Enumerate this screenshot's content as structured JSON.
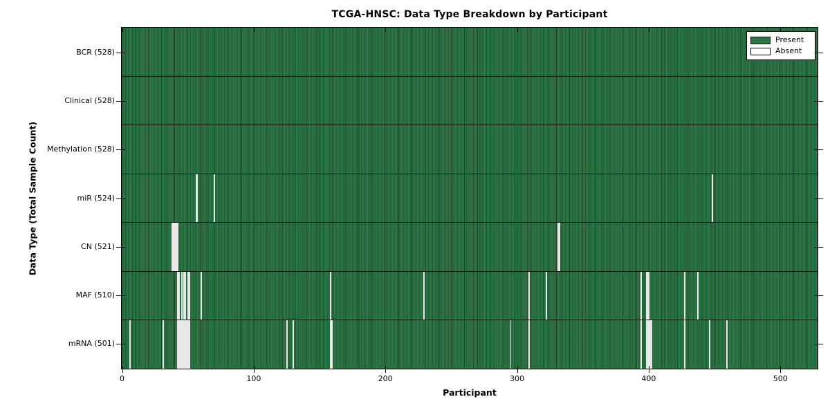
{
  "chart_data": {
    "type": "heatmap",
    "title": "TCGA-HNSC: Data Type Breakdown by Participant",
    "xlabel": "Participant",
    "ylabel": "Data Type (Total Sample Count)",
    "xlim": [
      0,
      528
    ],
    "x_ticks": [
      0,
      100,
      200,
      300,
      400,
      500
    ],
    "total_participants": 528,
    "grid": false,
    "legend_position": "upper right",
    "legend": [
      {
        "label": "Present",
        "color": "#2e7848"
      },
      {
        "label": "Absent",
        "color": "#ffffff"
      }
    ],
    "colors": {
      "present_fill": "#2e7848",
      "absent_fill": "#e9e9e9",
      "border": "#000000",
      "background": "#ffffff"
    },
    "rows": [
      {
        "label": "BCR (528)",
        "data_type": "BCR",
        "count": 528,
        "absent_ranges": []
      },
      {
        "label": "Clinical (528)",
        "data_type": "Clinical",
        "count": 528,
        "absent_ranges": []
      },
      {
        "label": "Methylation (528)",
        "data_type": "Methylation",
        "count": 528,
        "absent_ranges": []
      },
      {
        "label": "miR (524)",
        "data_type": "miR",
        "count": 524,
        "absent_ranges": [
          [
            56,
            2
          ],
          [
            70,
            1
          ],
          [
            448,
            1
          ]
        ]
      },
      {
        "label": "CN (521)",
        "data_type": "CN",
        "count": 521,
        "absent_ranges": [
          [
            38,
            5
          ],
          [
            331,
            2
          ]
        ]
      },
      {
        "label": "MAF (510)",
        "data_type": "MAF",
        "count": 510,
        "absent_ranges": [
          [
            42,
            2
          ],
          [
            45,
            1
          ],
          [
            47,
            2
          ],
          [
            50,
            2
          ],
          [
            60,
            1
          ],
          [
            158,
            1
          ],
          [
            229,
            1
          ],
          [
            309,
            1
          ],
          [
            322,
            1
          ],
          [
            394,
            1
          ],
          [
            398,
            3
          ],
          [
            427,
            1
          ],
          [
            437,
            1
          ]
        ]
      },
      {
        "label": "mRNA (501)",
        "data_type": "mRNA",
        "count": 501,
        "absent_ranges": [
          [
            6,
            1
          ],
          [
            31,
            1
          ],
          [
            42,
            10
          ],
          [
            125,
            1
          ],
          [
            130,
            1
          ],
          [
            158,
            2
          ],
          [
            295,
            1
          ],
          [
            309,
            1
          ],
          [
            394,
            1
          ],
          [
            398,
            5
          ],
          [
            427,
            1
          ],
          [
            446,
            1
          ],
          [
            459,
            1
          ]
        ]
      }
    ]
  }
}
